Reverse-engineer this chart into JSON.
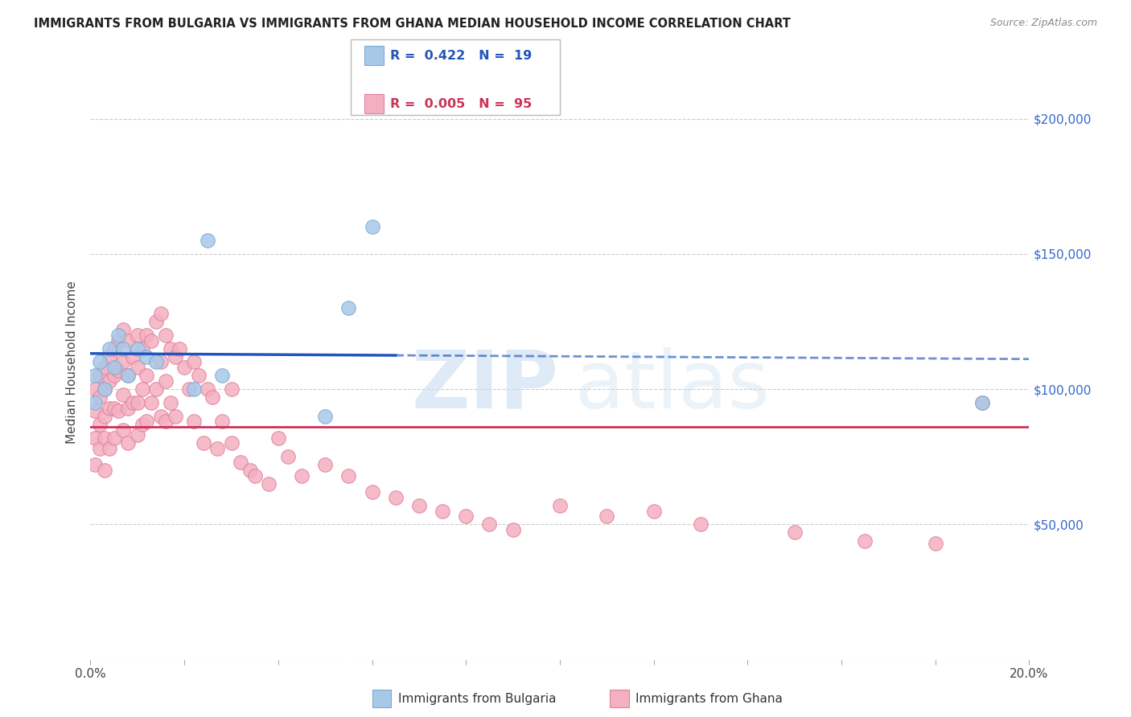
{
  "title": "IMMIGRANTS FROM BULGARIA VS IMMIGRANTS FROM GHANA MEDIAN HOUSEHOLD INCOME CORRELATION CHART",
  "source": "Source: ZipAtlas.com",
  "ylabel": "Median Household Income",
  "xlim": [
    0,
    0.2
  ],
  "ylim": [
    0,
    220000
  ],
  "background_color": "#ffffff",
  "grid_color": "#cccccc",
  "bulgaria_color": "#a8c8e8",
  "ghana_color": "#f4b0c0",
  "bulgaria_edge": "#7aaad0",
  "ghana_edge": "#e080a0",
  "bulgaria_trend_color": "#2255bb",
  "ghana_trend_color": "#cc3355",
  "legend_R_bulgaria": "0.422",
  "legend_N_bulgaria": "19",
  "legend_R_ghana": "0.005",
  "legend_N_ghana": "95",
  "bulgaria_x": [
    0.001,
    0.001,
    0.002,
    0.003,
    0.004,
    0.005,
    0.006,
    0.007,
    0.008,
    0.01,
    0.012,
    0.014,
    0.022,
    0.025,
    0.028,
    0.05,
    0.055,
    0.06,
    0.19
  ],
  "bulgaria_y": [
    105000,
    95000,
    110000,
    100000,
    115000,
    108000,
    120000,
    115000,
    105000,
    115000,
    112000,
    110000,
    100000,
    155000,
    105000,
    90000,
    130000,
    160000,
    95000
  ],
  "ghana_x": [
    0.001,
    0.001,
    0.001,
    0.001,
    0.002,
    0.002,
    0.002,
    0.002,
    0.003,
    0.003,
    0.003,
    0.003,
    0.003,
    0.004,
    0.004,
    0.004,
    0.004,
    0.005,
    0.005,
    0.005,
    0.005,
    0.006,
    0.006,
    0.006,
    0.007,
    0.007,
    0.007,
    0.007,
    0.008,
    0.008,
    0.008,
    0.008,
    0.009,
    0.009,
    0.01,
    0.01,
    0.01,
    0.01,
    0.011,
    0.011,
    0.011,
    0.012,
    0.012,
    0.012,
    0.013,
    0.013,
    0.014,
    0.014,
    0.015,
    0.015,
    0.015,
    0.016,
    0.016,
    0.016,
    0.017,
    0.017,
    0.018,
    0.018,
    0.019,
    0.02,
    0.021,
    0.022,
    0.022,
    0.023,
    0.024,
    0.025,
    0.026,
    0.027,
    0.028,
    0.03,
    0.03,
    0.032,
    0.034,
    0.035,
    0.038,
    0.04,
    0.042,
    0.045,
    0.05,
    0.055,
    0.06,
    0.065,
    0.07,
    0.075,
    0.08,
    0.085,
    0.09,
    0.1,
    0.11,
    0.12,
    0.13,
    0.15,
    0.165,
    0.18,
    0.19
  ],
  "ghana_y": [
    100000,
    92000,
    82000,
    72000,
    105000,
    97000,
    87000,
    78000,
    108000,
    100000,
    90000,
    82000,
    70000,
    112000,
    103000,
    93000,
    78000,
    115000,
    105000,
    93000,
    82000,
    118000,
    107000,
    92000,
    122000,
    110000,
    98000,
    85000,
    118000,
    105000,
    93000,
    80000,
    112000,
    95000,
    120000,
    108000,
    95000,
    83000,
    115000,
    100000,
    87000,
    120000,
    105000,
    88000,
    118000,
    95000,
    125000,
    100000,
    128000,
    110000,
    90000,
    120000,
    103000,
    88000,
    115000,
    95000,
    112000,
    90000,
    115000,
    108000,
    100000,
    110000,
    88000,
    105000,
    80000,
    100000,
    97000,
    78000,
    88000,
    100000,
    80000,
    73000,
    70000,
    68000,
    65000,
    82000,
    75000,
    68000,
    72000,
    68000,
    62000,
    60000,
    57000,
    55000,
    53000,
    50000,
    48000,
    57000,
    53000,
    55000,
    50000,
    47000,
    44000,
    43000,
    95000
  ],
  "bulgaria_trend_start_x": 0.001,
  "bulgaria_trend_end_solid_x": 0.065,
  "bulgaria_trend_end_dashed_x": 0.2,
  "ghana_trend_y": 86000
}
